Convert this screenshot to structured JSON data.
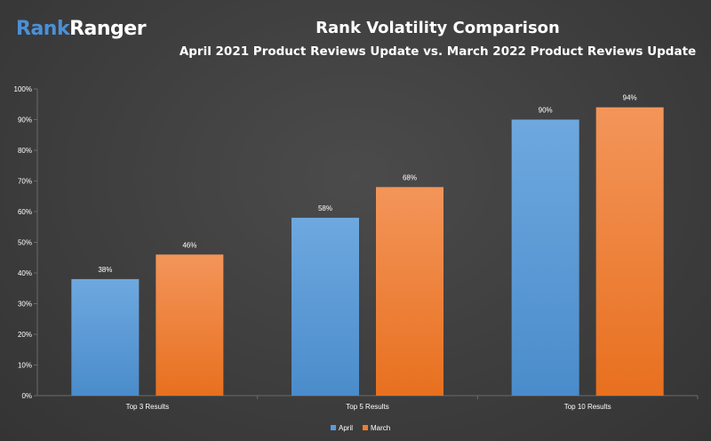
{
  "logo": {
    "part1": "Rank",
    "part2": "Ranger"
  },
  "colors": {
    "april": "#5b9bd5",
    "march": "#ed7d31",
    "text": "#ffffff",
    "grid": "#6a6a6a"
  },
  "chart_data": {
    "type": "bar",
    "title": "Rank Volatility Comparison",
    "subtitle": "April 2021 Product Reviews Update vs. March 2022 Product Reviews Update",
    "categories": [
      "Top 3 Results",
      "Top 5 Results",
      "Top 10 Results"
    ],
    "series": [
      {
        "name": "April",
        "values": [
          38,
          58,
          90
        ],
        "labels": [
          "38%",
          "58%",
          "90%"
        ]
      },
      {
        "name": "March",
        "values": [
          46,
          68,
          94
        ],
        "labels": [
          "46%",
          "68%",
          "94%"
        ]
      }
    ],
    "ylim": [
      0,
      100
    ],
    "yticks": [
      0,
      10,
      20,
      30,
      40,
      50,
      60,
      70,
      80,
      90,
      100
    ],
    "ytick_labels": [
      "0%",
      "10%",
      "20%",
      "30%",
      "40%",
      "50%",
      "60%",
      "70%",
      "80%",
      "90%",
      "100%"
    ],
    "xlabel": "",
    "ylabel": "",
    "grid": false,
    "legend": "bottom-center"
  }
}
